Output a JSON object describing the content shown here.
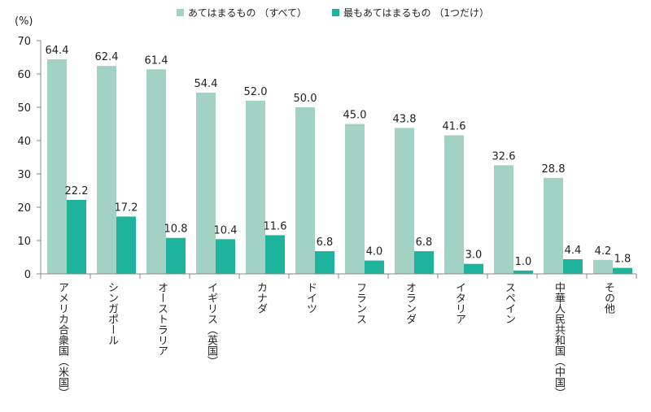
{
  "chart_data": {
    "type": "bar",
    "y_unit": "(%)",
    "ylim": [
      0,
      70
    ],
    "yticks": [
      0,
      10,
      20,
      30,
      40,
      50,
      60,
      70
    ],
    "grid": false,
    "legend_position": "top",
    "categories": [
      "アメリカ合衆国（米国）",
      "シンガポール",
      "オーストラリア",
      "イギリス（英国）",
      "カナダ",
      "ドイツ",
      "フランス",
      "オランダ",
      "イタリア",
      "スペイン",
      "中華人民共和国（中国）",
      "その他"
    ],
    "series": [
      {
        "name": "あてはまるもの （すべて）",
        "color": "#a3d2c5",
        "values": [
          64.4,
          62.4,
          61.4,
          54.4,
          52.0,
          50.0,
          45.0,
          43.8,
          41.6,
          32.6,
          28.8,
          4.2
        ]
      },
      {
        "name": "最もあてはまるもの （1つだけ）",
        "color": "#1db39c",
        "values": [
          22.2,
          17.2,
          10.8,
          10.4,
          11.6,
          6.8,
          4.0,
          6.8,
          3.0,
          1.0,
          4.4,
          1.8
        ]
      }
    ]
  }
}
